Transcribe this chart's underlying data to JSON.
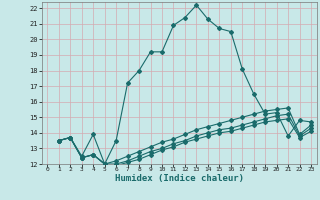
{
  "xlabel": "Humidex (Indice chaleur)",
  "ylabel": "",
  "xlim": [
    -0.5,
    23.5
  ],
  "ylim": [
    12,
    22.4
  ],
  "yticks": [
    12,
    13,
    14,
    15,
    16,
    17,
    18,
    19,
    20,
    21,
    22
  ],
  "xticks": [
    0,
    1,
    2,
    3,
    4,
    5,
    6,
    7,
    8,
    9,
    10,
    11,
    12,
    13,
    14,
    15,
    16,
    17,
    18,
    19,
    20,
    21,
    22,
    23
  ],
  "bg_color": "#c8e8e8",
  "line_color": "#1a6b6b",
  "grid_color": "#d4aab0",
  "lines": [
    {
      "x": [
        1,
        2,
        3,
        4,
        5,
        6,
        7,
        8,
        9,
        10,
        11,
        12,
        13,
        14,
        15,
        16,
        17,
        18,
        19,
        20,
        21,
        22,
        23
      ],
      "y": [
        13.5,
        13.7,
        12.5,
        13.9,
        12.0,
        13.5,
        17.2,
        18.0,
        19.2,
        19.2,
        20.9,
        21.4,
        22.2,
        21.3,
        20.7,
        20.5,
        18.1,
        16.5,
        15.2,
        15.3,
        13.8,
        14.8,
        14.7
      ]
    },
    {
      "x": [
        1,
        2,
        3,
        4,
        5,
        6,
        7,
        8,
        9,
        10,
        11,
        12,
        13,
        14,
        15,
        16,
        17,
        18,
        19,
        20,
        21,
        22,
        23
      ],
      "y": [
        13.5,
        13.7,
        12.4,
        12.6,
        12.0,
        12.2,
        12.5,
        12.8,
        13.1,
        13.4,
        13.6,
        13.9,
        14.2,
        14.4,
        14.6,
        14.8,
        15.0,
        15.2,
        15.4,
        15.5,
        15.6,
        13.9,
        14.5
      ]
    },
    {
      "x": [
        1,
        2,
        3,
        4,
        5,
        6,
        7,
        8,
        9,
        10,
        11,
        12,
        13,
        14,
        15,
        16,
        17,
        18,
        19,
        20,
        21,
        22,
        23
      ],
      "y": [
        13.5,
        13.7,
        12.4,
        12.6,
        12.0,
        12.0,
        12.2,
        12.5,
        12.8,
        13.0,
        13.3,
        13.5,
        13.8,
        14.0,
        14.2,
        14.3,
        14.5,
        14.7,
        14.9,
        15.1,
        15.2,
        13.8,
        14.3
      ]
    },
    {
      "x": [
        1,
        2,
        3,
        4,
        5,
        6,
        7,
        8,
        9,
        10,
        11,
        12,
        13,
        14,
        15,
        16,
        17,
        18,
        19,
        20,
        21,
        22,
        23
      ],
      "y": [
        13.5,
        13.7,
        12.4,
        12.6,
        12.0,
        11.9,
        12.1,
        12.3,
        12.6,
        12.9,
        13.1,
        13.4,
        13.6,
        13.8,
        14.0,
        14.1,
        14.3,
        14.5,
        14.7,
        14.8,
        14.9,
        13.7,
        14.1
      ]
    }
  ]
}
